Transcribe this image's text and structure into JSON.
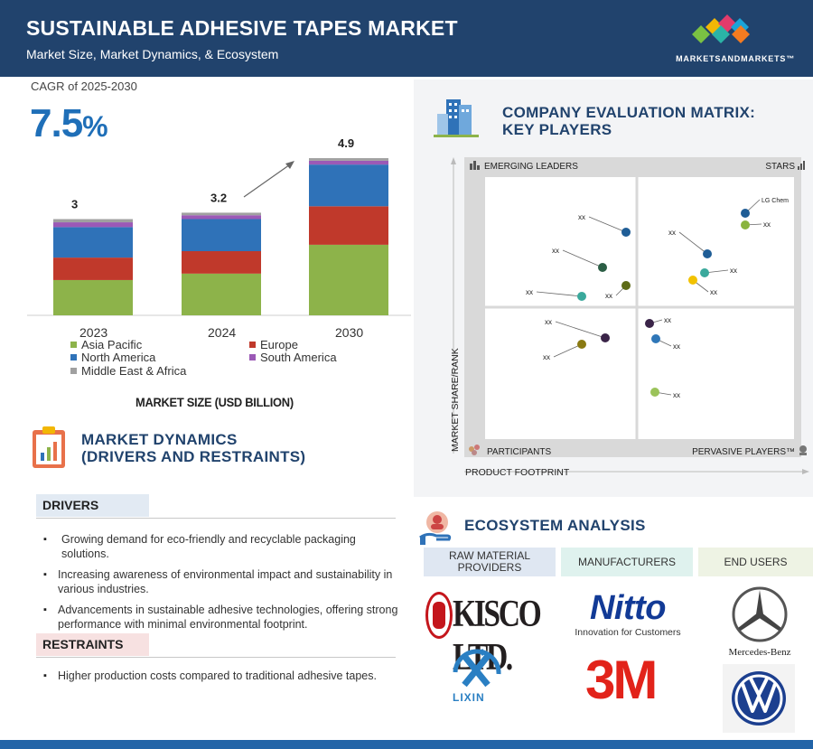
{
  "header": {
    "title": "SUSTAINABLE ADHESIVE TAPES MARKET",
    "subtitle": "Market Size, Market Dynamics, & Ecosystem",
    "brand": "MARKETSANDMARKETS™"
  },
  "market_size": {
    "cagr_label": "CAGR of 2025-2030",
    "cagr_value": "7.5",
    "cagr_unit": "%",
    "title": "MARKET SIZE (USD BILLION)"
  },
  "chart_data": {
    "type": "bar",
    "stacked": true,
    "categories": [
      "2023",
      "2024",
      "2030"
    ],
    "totals": [
      3,
      3.2,
      4.9
    ],
    "total_labels": [
      "3",
      "3.2",
      "4.9"
    ],
    "series": [
      {
        "name": "Asia Pacific",
        "color": "#8db34a",
        "values": [
          1.1,
          1.3,
          2.2
        ]
      },
      {
        "name": "Europe",
        "color": "#c0392b",
        "values": [
          0.7,
          0.7,
          1.2
        ]
      },
      {
        "name": "North America",
        "color": "#2f72b8",
        "values": [
          0.95,
          1.0,
          1.3
        ]
      },
      {
        "name": "South America",
        "color": "#9b59b6",
        "values": [
          0.15,
          0.12,
          0.12
        ]
      },
      {
        "name": "Middle East & Africa",
        "color": "#a0a0a0",
        "values": [
          0.1,
          0.08,
          0.08
        ]
      }
    ],
    "legend_placement": "bottom",
    "grid": false
  },
  "dynamics": {
    "title_line1": "MARKET DYNAMICS",
    "title_line2": "(DRIVERS AND RESTRAINTS)",
    "drivers_label": "DRIVERS",
    "drivers": [
      "Growing demand for eco-friendly and recyclable packaging solutions.",
      "Increasing awareness of environmental impact and sustainability in various industries.",
      "Advancements in sustainable adhesive technologies, offering strong performance with minimal environmental footprint."
    ],
    "restraints_label": "RESTRAINTS",
    "restraints": [
      "Higher production costs compared to traditional adhesive tapes."
    ]
  },
  "matrix": {
    "title_line1": "COMPANY EVALUATION MATRIX:",
    "title_line2": "KEY PLAYERS",
    "quadrants": {
      "top_left": "EMERGING LEADERS",
      "top_right": "STARS",
      "bottom_left": "PARTICIPANTS",
      "bottom_right": "PERVASIVE PLAYERS™"
    },
    "y_axis": "MARKET SHARE/RANK",
    "x_axis": "PRODUCT FOOTPRINT",
    "featured_company": "LG Chem",
    "placeholder_label": "xx",
    "dot_colors": [
      "#1f5d96",
      "#2b5e45",
      "#3aa99c",
      "#5d6b17",
      "#8ab43f",
      "#f2c200",
      "#3a2448",
      "#2f77b8",
      "#8a7a12",
      "#9bc35a"
    ]
  },
  "ecosystem": {
    "title": "ECOSYSTEM ANALYSIS",
    "raw_line1": "RAW MATERIAL",
    "raw_line2": "PROVIDERS",
    "manufacturers": "MANUFACTURERS",
    "end_users": "END USERS",
    "logos": {
      "kisco": "KISCO LTD.",
      "nitto": "Nitto",
      "nitto_tag": "Innovation for Customers",
      "mercedes": "Mercedes-Benz",
      "lixin": "LIXIN",
      "threem": "3M"
    }
  }
}
